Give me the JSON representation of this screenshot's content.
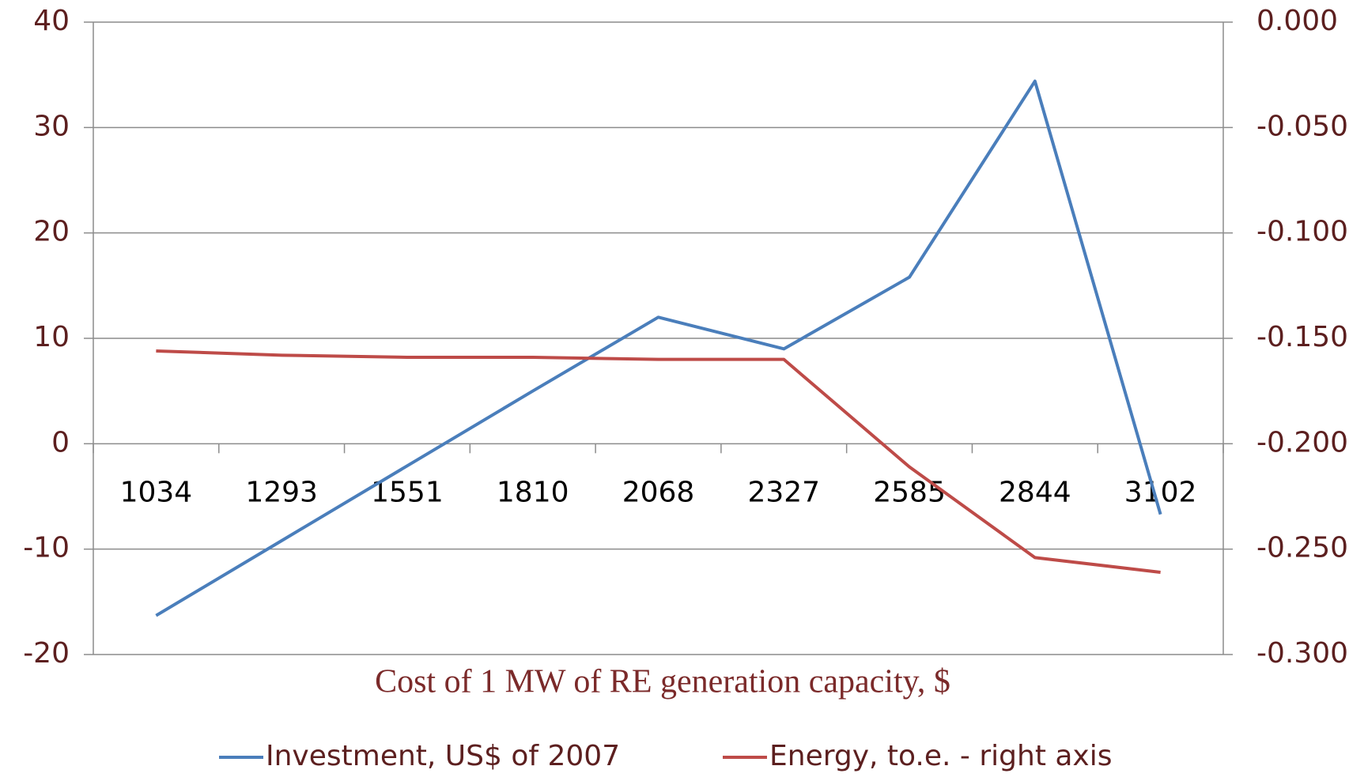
{
  "chart_data": {
    "type": "line",
    "xlabel": "Cost of 1 MW of RE generation capacity, $",
    "categories": [
      "1034",
      "1293",
      "1551",
      "1810",
      "2068",
      "2327",
      "2585",
      "2844",
      "3102"
    ],
    "series": [
      {
        "name": "Investment, US$ of 2007",
        "color": "#4a7ebb",
        "axis": "y",
        "values": [
          -16.3,
          -9.2,
          -2.1,
          5.0,
          12.0,
          9.0,
          15.8,
          34.4,
          -6.7
        ]
      },
      {
        "name": "Energy, to.e. - right axis",
        "color": "#be4b48",
        "axis": "y2",
        "values": [
          -0.156,
          -0.158,
          -0.159,
          -0.159,
          -0.16,
          -0.16,
          -0.211,
          -0.254,
          -0.261
        ]
      }
    ],
    "ylim": [
      -20,
      40
    ],
    "yticks": [
      -20,
      -10,
      0,
      10,
      20,
      30,
      40
    ],
    "y2lim": [
      -0.3,
      0
    ],
    "y2ticks": [
      {
        "value": -0.3,
        "label": "-0.300"
      },
      {
        "value": -0.25,
        "label": "-0.250"
      },
      {
        "value": -0.2,
        "label": "-0.200"
      },
      {
        "value": -0.15,
        "label": "-0.150"
      },
      {
        "value": -0.1,
        "label": "-0.100"
      },
      {
        "value": -0.05,
        "label": "-0.050"
      },
      {
        "value": 0,
        "label": "0.000"
      }
    ],
    "grid": true,
    "legend": "bottom"
  }
}
